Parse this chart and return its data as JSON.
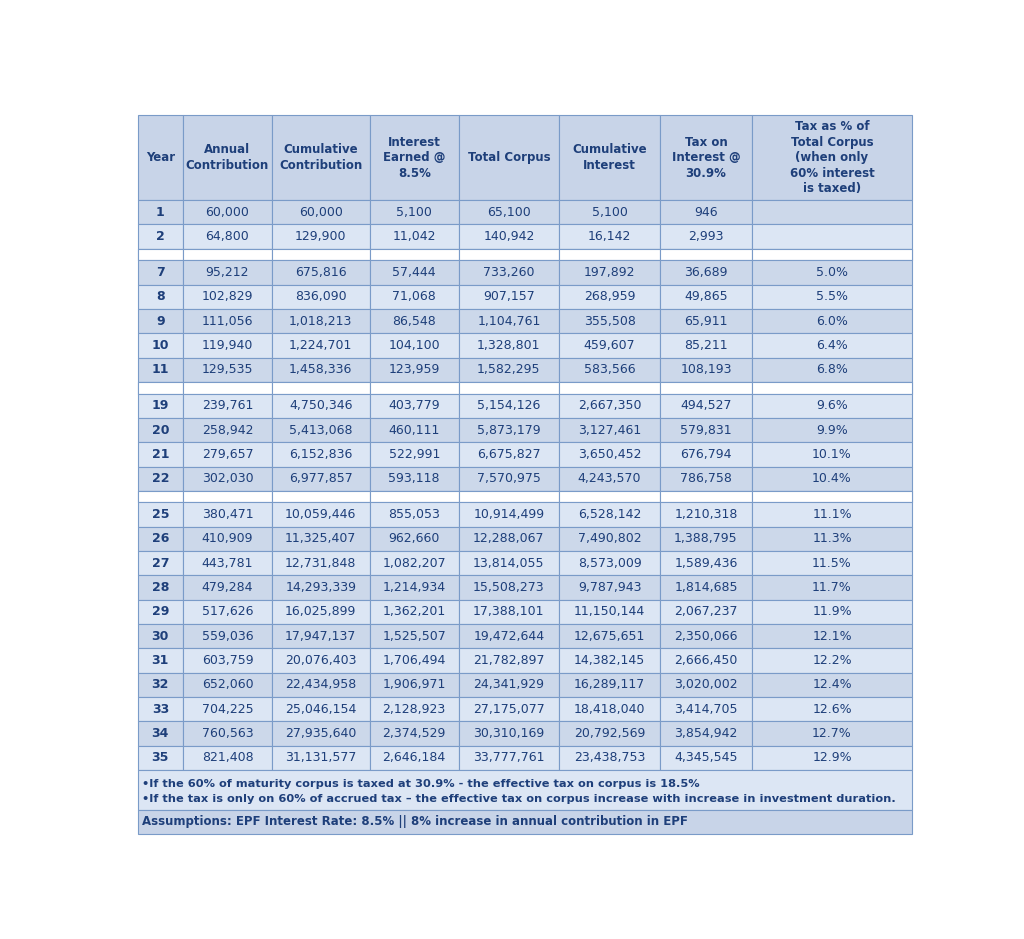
{
  "headers": [
    "Year",
    "Annual\nContribution",
    "Cumulative\nContribution",
    "Interest\nEarned @\n8.5%",
    "Total Corpus",
    "Cumulative\nInterest",
    "Tax on\nInterest @\n30.9%",
    "Tax as % of\nTotal Corpus\n(when only\n60% interest\nis taxed)"
  ],
  "rows": [
    [
      "1",
      "60,000",
      "60,000",
      "5,100",
      "65,100",
      "5,100",
      "946",
      ""
    ],
    [
      "2",
      "64,800",
      "129,900",
      "11,042",
      "140,942",
      "16,142",
      "2,993",
      ""
    ],
    [
      "",
      "",
      "",
      "",
      "",
      "",
      "",
      ""
    ],
    [
      "7",
      "95,212",
      "675,816",
      "57,444",
      "733,260",
      "197,892",
      "36,689",
      "5.0%"
    ],
    [
      "8",
      "102,829",
      "836,090",
      "71,068",
      "907,157",
      "268,959",
      "49,865",
      "5.5%"
    ],
    [
      "9",
      "111,056",
      "1,018,213",
      "86,548",
      "1,104,761",
      "355,508",
      "65,911",
      "6.0%"
    ],
    [
      "10",
      "119,940",
      "1,224,701",
      "104,100",
      "1,328,801",
      "459,607",
      "85,211",
      "6.4%"
    ],
    [
      "11",
      "129,535",
      "1,458,336",
      "123,959",
      "1,582,295",
      "583,566",
      "108,193",
      "6.8%"
    ],
    [
      "",
      "",
      "",
      "",
      "",
      "",
      "",
      ""
    ],
    [
      "19",
      "239,761",
      "4,750,346",
      "403,779",
      "5,154,126",
      "2,667,350",
      "494,527",
      "9.6%"
    ],
    [
      "20",
      "258,942",
      "5,413,068",
      "460,111",
      "5,873,179",
      "3,127,461",
      "579,831",
      "9.9%"
    ],
    [
      "21",
      "279,657",
      "6,152,836",
      "522,991",
      "6,675,827",
      "3,650,452",
      "676,794",
      "10.1%"
    ],
    [
      "22",
      "302,030",
      "6,977,857",
      "593,118",
      "7,570,975",
      "4,243,570",
      "786,758",
      "10.4%"
    ],
    [
      "",
      "",
      "",
      "",
      "",
      "",
      "",
      ""
    ],
    [
      "25",
      "380,471",
      "10,059,446",
      "855,053",
      "10,914,499",
      "6,528,142",
      "1,210,318",
      "11.1%"
    ],
    [
      "26",
      "410,909",
      "11,325,407",
      "962,660",
      "12,288,067",
      "7,490,802",
      "1,388,795",
      "11.3%"
    ],
    [
      "27",
      "443,781",
      "12,731,848",
      "1,082,207",
      "13,814,055",
      "8,573,009",
      "1,589,436",
      "11.5%"
    ],
    [
      "28",
      "479,284",
      "14,293,339",
      "1,214,934",
      "15,508,273",
      "9,787,943",
      "1,814,685",
      "11.7%"
    ],
    [
      "29",
      "517,626",
      "16,025,899",
      "1,362,201",
      "17,388,101",
      "11,150,144",
      "2,067,237",
      "11.9%"
    ],
    [
      "30",
      "559,036",
      "17,947,137",
      "1,525,507",
      "19,472,644",
      "12,675,651",
      "2,350,066",
      "12.1%"
    ],
    [
      "31",
      "603,759",
      "20,076,403",
      "1,706,494",
      "21,782,897",
      "14,382,145",
      "2,666,450",
      "12.2%"
    ],
    [
      "32",
      "652,060",
      "22,434,958",
      "1,906,971",
      "24,341,929",
      "16,289,117",
      "3,020,002",
      "12.4%"
    ],
    [
      "33",
      "704,225",
      "25,046,154",
      "2,128,923",
      "27,175,077",
      "18,418,040",
      "3,414,705",
      "12.6%"
    ],
    [
      "34",
      "760,563",
      "27,935,640",
      "2,374,529",
      "30,310,169",
      "20,792,569",
      "3,854,942",
      "12.7%"
    ],
    [
      "35",
      "821,408",
      "31,131,577",
      "2,646,184",
      "33,777,761",
      "23,438,753",
      "4,345,545",
      "12.9%"
    ]
  ],
  "footer_line1": "•If the 60% of maturity corpus is taxed at 30.9% - the effective tax on corpus is 18.5%",
  "footer_line2": "•If the tax is only on 60% of accrued tax – the effective tax on corpus increase with increase in investment duration.",
  "assumptions": "Assumptions: EPF Interest Rate: 8.5% || 8% increase in annual contribution in EPF",
  "header_bg": "#c8d4e8",
  "row_bg_dark": "#ccd8ea",
  "row_bg_light": "#dce6f4",
  "separator_bg": "#ffffff",
  "text_color": "#1e3f7a",
  "border_color": "#7a9bc8",
  "footer_bg": "#dce6f4",
  "assumptions_bg": "#c8d4e8"
}
